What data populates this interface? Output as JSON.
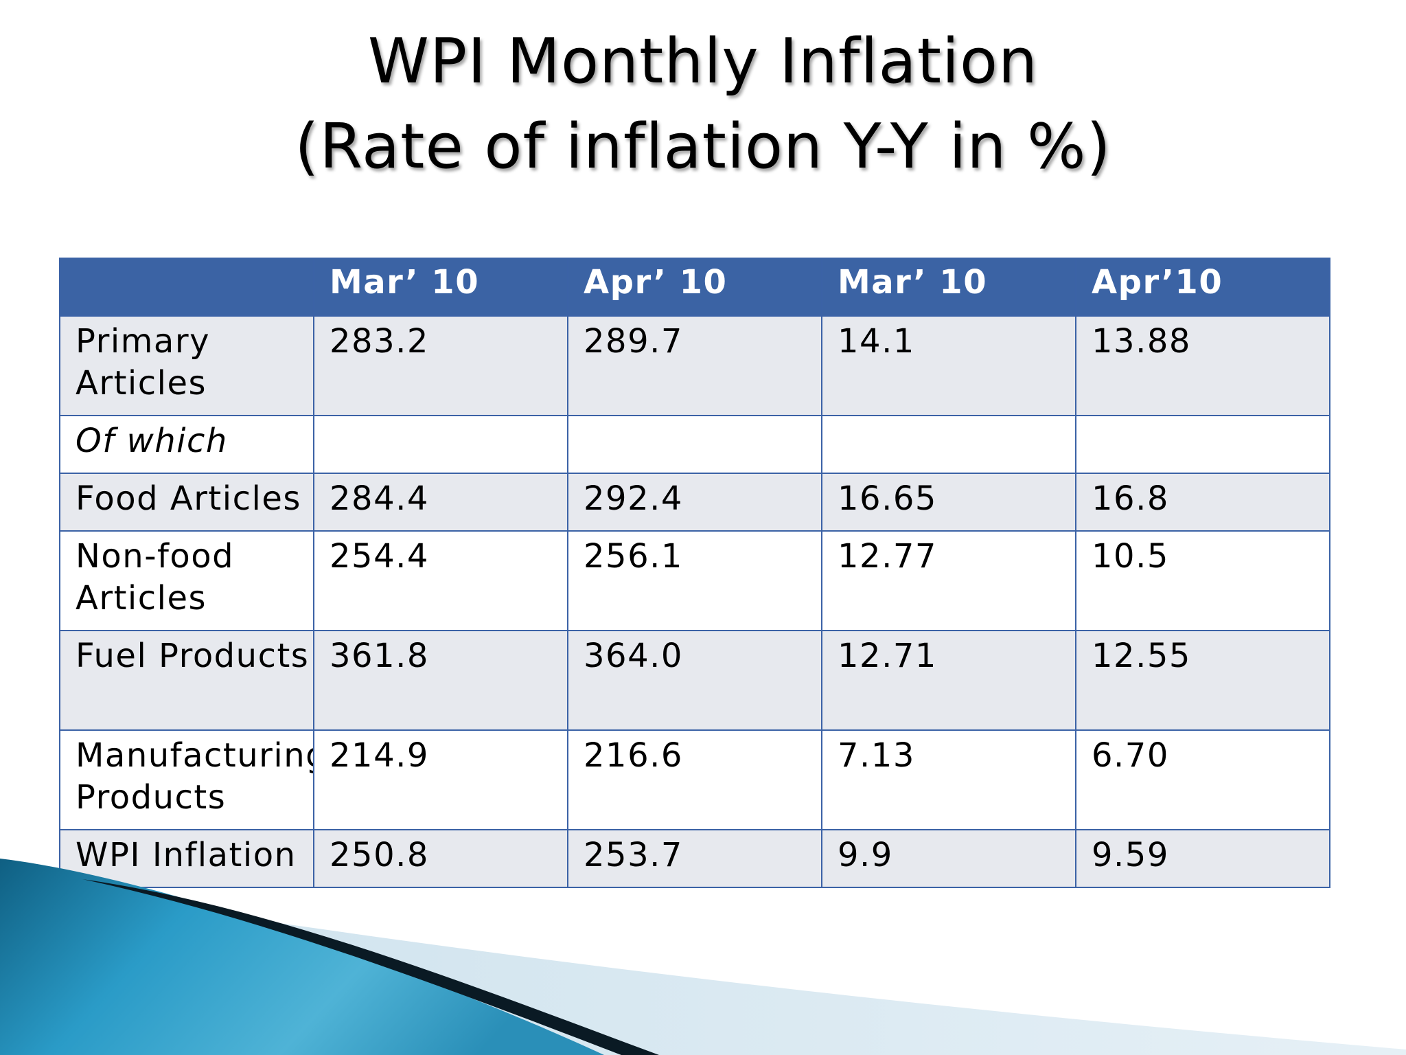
{
  "title": {
    "line1": "WPI Monthly Inflation",
    "line2": "(Rate of inflation Y-Y in %)"
  },
  "table": {
    "headers": [
      "",
      "Mar’ 10",
      "Apr’ 10",
      "Mar’ 10",
      "Apr’10"
    ],
    "rows": [
      {
        "label": "Primary Articles",
        "values": [
          "283.2",
          "289.7",
          "14.1",
          "13.88"
        ]
      },
      {
        "label": "Of which",
        "values": [
          "",
          "",
          "",
          ""
        ]
      },
      {
        "label": "Food Articles",
        "values": [
          "284.4",
          "292.4",
          "16.65",
          "16.8"
        ]
      },
      {
        "label": "Non-food Articles",
        "values": [
          "254.4",
          "256.1",
          "12.77",
          "10.5"
        ]
      },
      {
        "label": "Fuel Products",
        "values": [
          "361.8",
          "364.0",
          "12.71",
          "12.55"
        ]
      },
      {
        "label": "Manufacturing Products",
        "values": [
          "214.9",
          "216.6",
          "7.13",
          "6.70"
        ]
      },
      {
        "label": "WPI Inflation",
        "values": [
          "250.8",
          "253.7",
          "9.9",
          "9.59"
        ]
      }
    ]
  },
  "colors": {
    "header_bg": "#3b63a4",
    "row_shade": "#e7e9ee",
    "border": "#3b62a6",
    "accent_teal": "#1f7fa6"
  }
}
